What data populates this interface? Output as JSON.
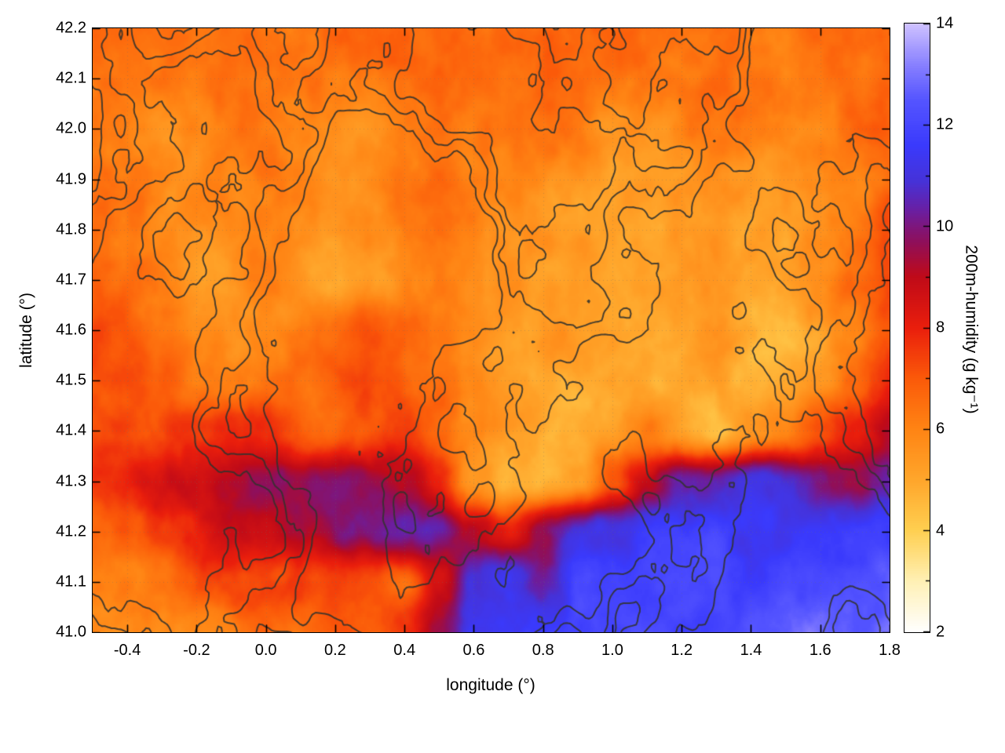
{
  "chart_data": {
    "type": "heatmap",
    "title": "",
    "xlabel": "longitude (°)",
    "ylabel": "latitude (°)",
    "colorbar_label": "200m-humidity (g kg⁻¹)",
    "xlim": [
      -0.5,
      1.8
    ],
    "ylim": [
      41.0,
      42.2
    ],
    "colorbar_range": [
      2,
      14
    ],
    "x_tick_labels": [
      "-0.4",
      "-0.2",
      "0.0",
      "0.2",
      "0.4",
      "0.6",
      "0.8",
      "1.0",
      "1.2",
      "1.4",
      "1.6",
      "1.8"
    ],
    "y_tick_labels": [
      "41.0",
      "41.1",
      "41.2",
      "41.3",
      "41.4",
      "41.5",
      "41.6",
      "41.7",
      "41.8",
      "41.9",
      "42.0",
      "42.1",
      "42.2"
    ],
    "colorbar_tick_labels": [
      "2",
      "4",
      "6",
      "8",
      "10",
      "12",
      "14"
    ],
    "colorbar_minor_ticks": [
      3,
      5,
      7,
      9,
      11,
      13
    ],
    "grid_on": true,
    "legend_position": "right-colorbar",
    "palette": [
      {
        "v": 2,
        "c": "#ffffff"
      },
      {
        "v": 3,
        "c": "#fff0b4"
      },
      {
        "v": 4,
        "c": "#ffcf50"
      },
      {
        "v": 5,
        "c": "#ffa62b"
      },
      {
        "v": 6,
        "c": "#ff8414"
      },
      {
        "v": 7,
        "c": "#fb5a09"
      },
      {
        "v": 8,
        "c": "#ea1e0c"
      },
      {
        "v": 9,
        "c": "#c00a18"
      },
      {
        "v": 9.7,
        "c": "#8f0f5a"
      },
      {
        "v": 10.3,
        "c": "#6b1ea0"
      },
      {
        "v": 10.9,
        "c": "#4632d8"
      },
      {
        "v": 11.6,
        "c": "#3a3afc"
      },
      {
        "v": 12.5,
        "c": "#5555ff"
      },
      {
        "v": 13.2,
        "c": "#8880ff"
      },
      {
        "v": 14,
        "c": "#cfc2ff"
      }
    ],
    "grid_lon": [
      -0.5,
      -0.4,
      -0.3,
      -0.2,
      -0.1,
      0.0,
      0.1,
      0.2,
      0.3,
      0.4,
      0.5,
      0.6,
      0.7,
      0.8,
      0.9,
      1.0,
      1.1,
      1.2,
      1.3,
      1.4,
      1.5,
      1.6,
      1.7,
      1.8
    ],
    "grid_lat": [
      42.2,
      42.1,
      42.0,
      41.9,
      41.8,
      41.7,
      41.6,
      41.5,
      41.4,
      41.3,
      41.2,
      41.1,
      41.0
    ],
    "humidity_grid": [
      [
        6.8,
        6.6,
        6.4,
        6.5,
        6.6,
        6.4,
        6.3,
        6.5,
        6.7,
        6.6,
        6.4,
        6.5,
        6.6,
        6.7,
        6.5,
        6.4,
        6.6,
        6.5,
        6.7,
        6.6,
        6.5,
        6.7,
        6.8,
        6.9
      ],
      [
        6.5,
        6.3,
        6.1,
        6.2,
        6.4,
        6.3,
        6.1,
        6.0,
        6.2,
        6.5,
        6.6,
        6.2,
        6.3,
        6.5,
        6.3,
        6.2,
        6.4,
        6.3,
        6.5,
        6.4,
        6.3,
        6.5,
        6.6,
        6.7
      ],
      [
        6.3,
        6.1,
        5.9,
        6.0,
        6.2,
        6.1,
        5.9,
        5.7,
        5.9,
        6.3,
        6.4,
        6.0,
        5.9,
        6.1,
        6.0,
        5.8,
        6.0,
        6.1,
        6.3,
        6.1,
        6.0,
        6.2,
        6.3,
        6.5
      ],
      [
        6.4,
        6.2,
        5.9,
        5.7,
        6.0,
        6.2,
        5.8,
        5.5,
        5.7,
        6.1,
        6.3,
        5.9,
        5.6,
        5.7,
        5.6,
        5.3,
        5.5,
        5.7,
        5.9,
        5.7,
        5.5,
        5.7,
        6.0,
        6.3
      ],
      [
        6.6,
        6.3,
        6.0,
        5.7,
        5.9,
        6.1,
        5.7,
        5.4,
        5.6,
        5.9,
        6.1,
        5.7,
        5.4,
        5.3,
        5.1,
        5.0,
        5.1,
        5.3,
        5.4,
        5.2,
        5.1,
        5.4,
        6.3,
        7.1
      ],
      [
        6.9,
        6.6,
        6.2,
        5.8,
        5.7,
        5.9,
        5.6,
        5.3,
        5.5,
        5.7,
        5.9,
        5.6,
        5.3,
        5.1,
        5.0,
        4.9,
        5.0,
        5.1,
        5.2,
        5.0,
        4.9,
        5.3,
        6.6,
        7.5
      ],
      [
        7.1,
        6.7,
        6.1,
        5.5,
        5.4,
        5.7,
        5.9,
        6.3,
        6.7,
        6.9,
        6.5,
        5.9,
        5.4,
        5.1,
        4.9,
        4.8,
        4.9,
        5.0,
        5.1,
        4.9,
        4.8,
        5.1,
        6.1,
        7.1
      ],
      [
        7.3,
        7.0,
        6.5,
        5.9,
        5.7,
        6.0,
        6.3,
        6.7,
        7.0,
        6.7,
        6.2,
        5.7,
        5.3,
        5.0,
        4.8,
        4.7,
        4.8,
        4.9,
        5.0,
        4.8,
        4.7,
        5.3,
        6.9,
        8.1
      ],
      [
        7.7,
        7.5,
        7.3,
        7.5,
        7.9,
        7.7,
        7.1,
        6.7,
        6.9,
        7.3,
        6.6,
        5.6,
        5.0,
        4.8,
        4.8,
        5.2,
        6.2,
        5.3,
        4.9,
        5.1,
        5.7,
        6.9,
        8.1,
        8.9
      ],
      [
        7.9,
        8.1,
        8.3,
        8.7,
        9.3,
        9.7,
        9.4,
        9.6,
        9.2,
        9.0,
        8.0,
        5.8,
        5.0,
        4.8,
        5.1,
        6.7,
        8.8,
        10.4,
        10.9,
        11.0,
        10.6,
        10.0,
        9.6,
        10.1
      ],
      [
        6.5,
        7.0,
        7.6,
        8.2,
        8.8,
        9.0,
        9.3,
        9.6,
        9.8,
        10.3,
        10.3,
        9.2,
        8.2,
        9.4,
        10.8,
        11.3,
        11.6,
        11.8,
        11.8,
        11.6,
        11.5,
        11.4,
        11.5,
        11.7
      ],
      [
        5.8,
        6.0,
        6.5,
        7.2,
        7.5,
        7.2,
        7.6,
        7.4,
        6.8,
        6.6,
        8.5,
        11.0,
        11.5,
        10.2,
        11.8,
        12.0,
        12.1,
        12.0,
        11.9,
        11.9,
        12.0,
        12.1,
        12.3,
        12.5
      ],
      [
        5.6,
        5.6,
        5.8,
        6.1,
        6.3,
        6.4,
        6.8,
        7.4,
        7.2,
        7.8,
        9.2,
        11.2,
        11.8,
        11.4,
        12.0,
        12.1,
        12.1,
        12.2,
        12.1,
        12.2,
        12.3,
        12.5,
        12.7,
        12.9
      ]
    ],
    "contours": {
      "color": "#32322d",
      "levels": [
        0.45,
        0.53,
        0.61
      ]
    }
  }
}
